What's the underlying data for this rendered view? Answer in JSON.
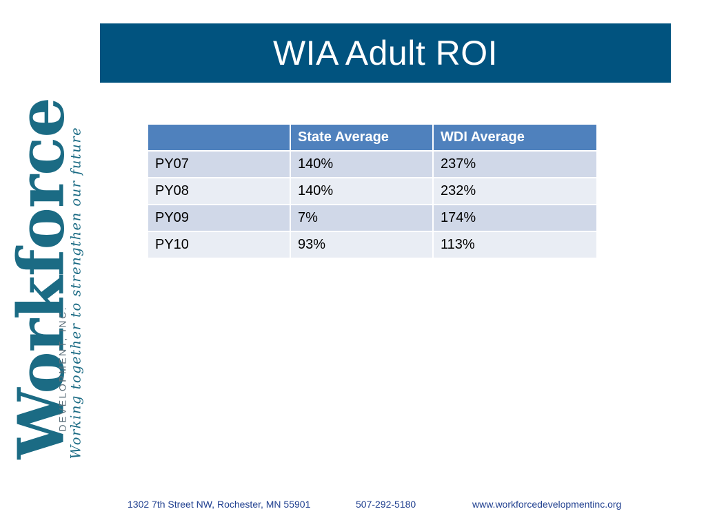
{
  "title": "WIA Adult ROI",
  "logo": {
    "wordmark": "Workforce",
    "subtitle": "DEVELOPMENT, INC.",
    "tagline": "Working together to strengthen our future"
  },
  "table": {
    "headers": [
      "",
      "State Average",
      "WDI Average"
    ],
    "rows": [
      [
        "PY07",
        "140%",
        "237%"
      ],
      [
        "PY08",
        "140%",
        "232%"
      ],
      [
        "PY09",
        "7%",
        "174%"
      ],
      [
        "PY10",
        "93%",
        "113%"
      ]
    ]
  },
  "footer": {
    "address": "1302 7th Street NW, Rochester, MN 55901",
    "phone": "507-292-5180",
    "website": "www.workforcedevelopmentinc.org"
  },
  "colors": {
    "title_bar": "#01537f",
    "table_header": "#4f81bd",
    "row_band_1": "#d0d8e8",
    "row_band_2": "#e9edf4",
    "logo": "#1b6b84",
    "footer_text": "#1f3f8f"
  }
}
